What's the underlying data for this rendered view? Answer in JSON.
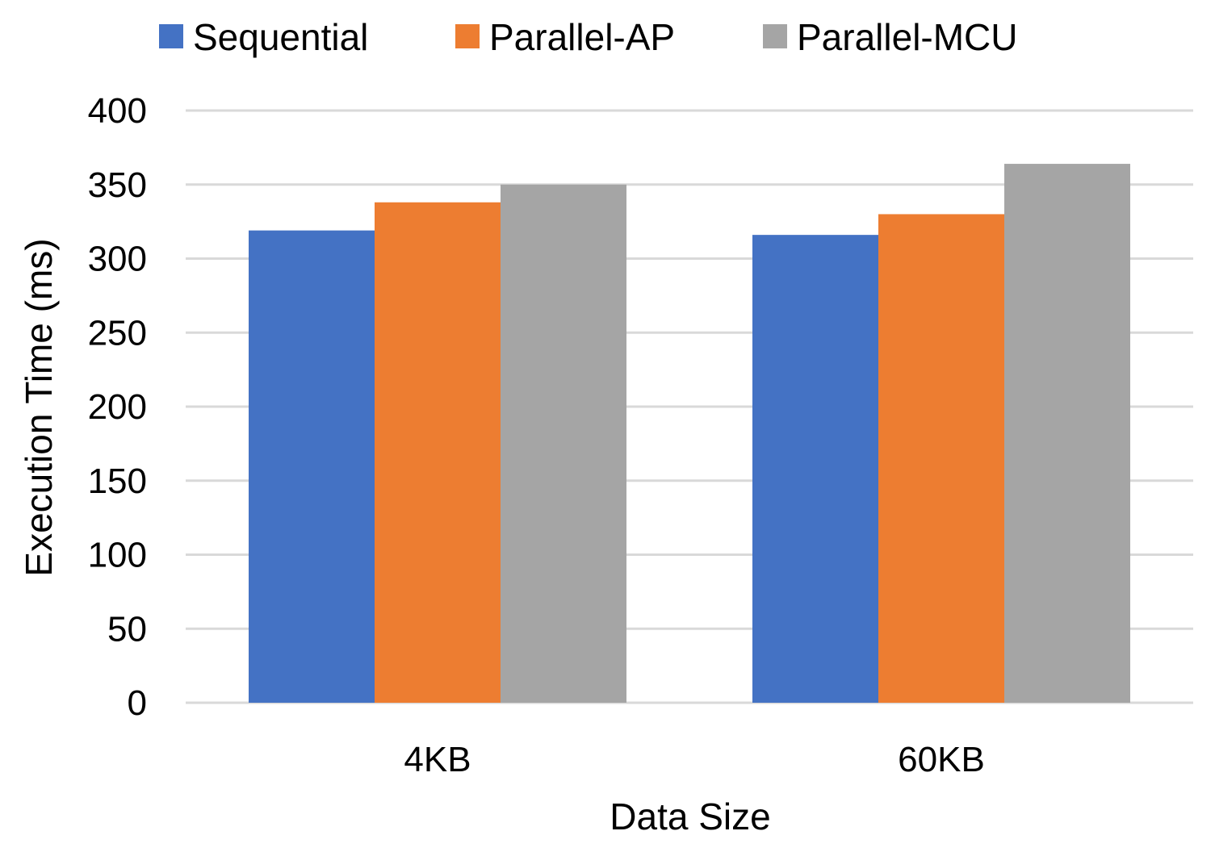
{
  "chart_data": {
    "type": "bar",
    "title": "",
    "xlabel": "Data Size",
    "ylabel": "Execution Time (ms)",
    "categories": [
      "4KB",
      "60KB"
    ],
    "series": [
      {
        "name": "Sequential",
        "color": "#4472c4",
        "values": [
          319,
          316
        ]
      },
      {
        "name": "Parallel-AP",
        "color": "#ed7d31",
        "values": [
          338,
          330
        ]
      },
      {
        "name": "Parallel-MCU",
        "color": "#a5a5a5",
        "values": [
          350,
          364
        ]
      }
    ],
    "ylim": [
      0,
      400
    ],
    "yticks": [
      0,
      50,
      100,
      150,
      200,
      250,
      300,
      350,
      400
    ],
    "ytick_labels": [
      "0",
      "50",
      "100",
      "150",
      "200",
      "250",
      "300",
      "350",
      "400"
    ],
    "grid": true,
    "legend_position": "top-center"
  }
}
